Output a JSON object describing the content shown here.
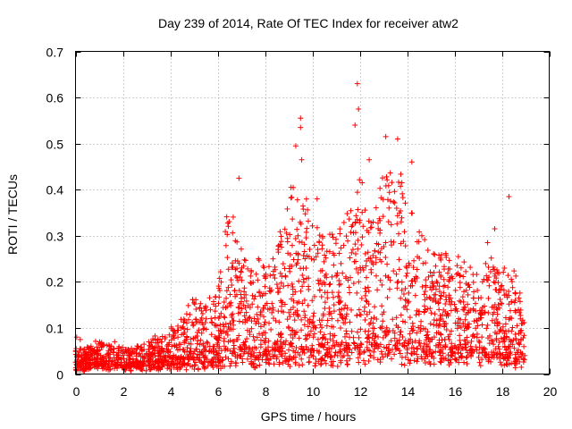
{
  "chart_data": {
    "type": "scatter",
    "title": "Day 239 of 2014, Rate Of TEC Index for receiver atw2",
    "xlabel": "GPS time / hours",
    "ylabel": "ROTI / TECUs",
    "xlim": [
      0,
      20
    ],
    "ylim": [
      0,
      0.7
    ],
    "xticks": [
      "0",
      "2",
      "4",
      "6",
      "8",
      "10",
      "12",
      "14",
      "16",
      "18",
      "20"
    ],
    "yticks": [
      "0",
      "0.1",
      "0.2",
      "0.3",
      "0.4",
      "0.5",
      "0.6",
      "0.7"
    ],
    "grid": true,
    "marker": "+",
    "series": [
      {
        "name": "ROTI",
        "color": "#ff0000",
        "envelope": [
          {
            "x": 0.0,
            "base": 0.015,
            "peak": 0.06
          },
          {
            "x": 0.5,
            "base": 0.015,
            "peak": 0.055
          },
          {
            "x": 1.0,
            "base": 0.015,
            "peak": 0.07
          },
          {
            "x": 1.5,
            "base": 0.015,
            "peak": 0.07
          },
          {
            "x": 2.0,
            "base": 0.015,
            "peak": 0.06
          },
          {
            "x": 2.5,
            "base": 0.015,
            "peak": 0.06
          },
          {
            "x": 3.0,
            "base": 0.015,
            "peak": 0.07
          },
          {
            "x": 3.5,
            "base": 0.02,
            "peak": 0.08
          },
          {
            "x": 4.0,
            "base": 0.02,
            "peak": 0.1
          },
          {
            "x": 4.5,
            "base": 0.02,
            "peak": 0.12
          },
          {
            "x": 5.0,
            "base": 0.02,
            "peak": 0.17
          },
          {
            "x": 5.5,
            "base": 0.02,
            "peak": 0.15
          },
          {
            "x": 6.0,
            "base": 0.02,
            "peak": 0.18
          },
          {
            "x": 6.5,
            "base": 0.04,
            "peak": 0.38
          },
          {
            "x": 7.0,
            "base": 0.04,
            "peak": 0.28
          },
          {
            "x": 7.5,
            "base": 0.03,
            "peak": 0.26
          },
          {
            "x": 8.0,
            "base": 0.03,
            "peak": 0.25
          },
          {
            "x": 8.5,
            "base": 0.03,
            "peak": 0.3
          },
          {
            "x": 9.0,
            "base": 0.03,
            "peak": 0.38
          },
          {
            "x": 9.5,
            "base": 0.04,
            "peak": 0.45
          },
          {
            "x": 10.0,
            "base": 0.04,
            "peak": 0.33
          },
          {
            "x": 10.5,
            "base": 0.03,
            "peak": 0.3
          },
          {
            "x": 11.0,
            "base": 0.03,
            "peak": 0.32
          },
          {
            "x": 11.5,
            "base": 0.04,
            "peak": 0.35
          },
          {
            "x": 12.0,
            "base": 0.05,
            "peak": 0.45
          },
          {
            "x": 12.5,
            "base": 0.05,
            "peak": 0.36
          },
          {
            "x": 13.0,
            "base": 0.05,
            "peak": 0.45
          },
          {
            "x": 13.5,
            "base": 0.05,
            "peak": 0.46
          },
          {
            "x": 14.0,
            "base": 0.04,
            "peak": 0.4
          },
          {
            "x": 14.5,
            "base": 0.04,
            "peak": 0.32
          },
          {
            "x": 15.0,
            "base": 0.04,
            "peak": 0.3
          },
          {
            "x": 15.5,
            "base": 0.04,
            "peak": 0.26
          },
          {
            "x": 16.0,
            "base": 0.04,
            "peak": 0.24
          },
          {
            "x": 16.5,
            "base": 0.04,
            "peak": 0.24
          },
          {
            "x": 17.0,
            "base": 0.03,
            "peak": 0.24
          },
          {
            "x": 17.5,
            "base": 0.03,
            "peak": 0.26
          },
          {
            "x": 18.0,
            "base": 0.03,
            "peak": 0.24
          },
          {
            "x": 18.5,
            "base": 0.03,
            "peak": 0.22
          },
          {
            "x": 19.0,
            "base": 0.03,
            "peak": 0.2
          }
        ],
        "x_end": 19.0,
        "outliers": [
          {
            "x": 11.9,
            "y": 0.63
          },
          {
            "x": 11.95,
            "y": 0.575
          },
          {
            "x": 9.5,
            "y": 0.555
          },
          {
            "x": 9.5,
            "y": 0.535
          },
          {
            "x": 11.8,
            "y": 0.54
          },
          {
            "x": 13.1,
            "y": 0.515
          },
          {
            "x": 13.6,
            "y": 0.51
          },
          {
            "x": 9.3,
            "y": 0.495
          },
          {
            "x": 9.55,
            "y": 0.465
          },
          {
            "x": 12.4,
            "y": 0.465
          },
          {
            "x": 14.2,
            "y": 0.46
          },
          {
            "x": 6.9,
            "y": 0.425
          },
          {
            "x": 9.1,
            "y": 0.405
          },
          {
            "x": 10.2,
            "y": 0.38
          },
          {
            "x": 18.3,
            "y": 0.385
          },
          {
            "x": 17.7,
            "y": 0.315
          },
          {
            "x": 17.4,
            "y": 0.285
          },
          {
            "x": 0.05,
            "y": 0.08
          },
          {
            "x": 0.2,
            "y": 0.075
          }
        ]
      }
    ]
  }
}
